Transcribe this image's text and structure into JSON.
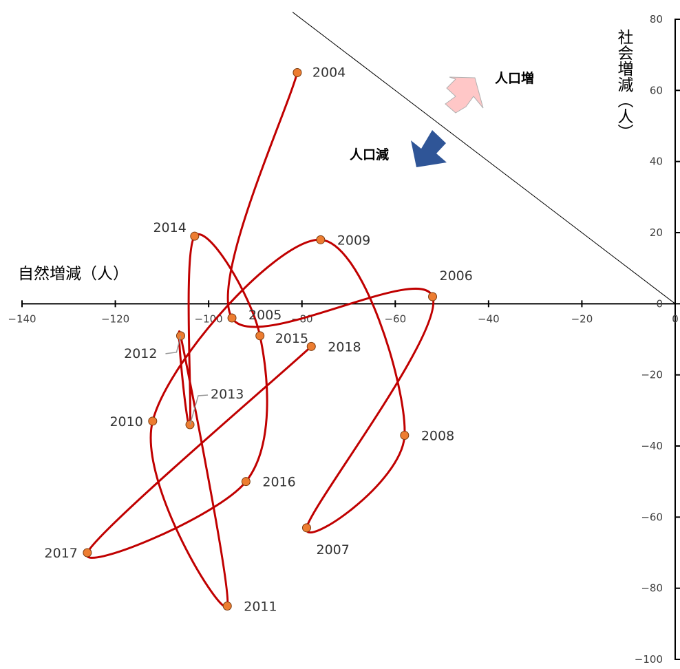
{
  "chart_data": {
    "type": "scatter",
    "title": "",
    "xlabel": "自然増減（人）",
    "ylabel": "社会増減（人）",
    "xlim": [
      -140,
      0
    ],
    "ylim": [
      -100,
      80
    ],
    "xticks": [
      -140,
      -120,
      -100,
      -80,
      -60,
      -40,
      -20,
      0
    ],
    "yticks": [
      -100,
      -80,
      -60,
      -40,
      -20,
      0,
      20,
      40,
      60,
      80
    ],
    "x_tick_labels": [
      "−140",
      "−120",
      "−100",
      "−80",
      "−60",
      "−40",
      "−20",
      "0"
    ],
    "y_tick_labels": [
      "−100",
      "−80",
      "−60",
      "−40",
      "−20",
      "0",
      "20",
      "40",
      "60",
      "80"
    ],
    "grid": false,
    "series": [
      {
        "color": "#c00000",
        "marker_color": "#ed7d31",
        "connected": "smooth",
        "points": [
          {
            "label": "2004",
            "x": -81,
            "y": 65
          },
          {
            "label": "2005",
            "x": -95,
            "y": -4
          },
          {
            "label": "2006",
            "x": -52,
            "y": 2
          },
          {
            "label": "2007",
            "x": -79,
            "y": -63
          },
          {
            "label": "2008",
            "x": -58,
            "y": -37
          },
          {
            "label": "2009",
            "x": -76,
            "y": 18
          },
          {
            "label": "2010",
            "x": -112,
            "y": -33
          },
          {
            "label": "2011",
            "x": -96,
            "y": -85
          },
          {
            "label": "2012",
            "x": -106,
            "y": -9
          },
          {
            "label": "2013",
            "x": -104,
            "y": -34
          },
          {
            "label": "2014",
            "x": -103,
            "y": 19
          },
          {
            "label": "2015",
            "x": -89,
            "y": -9
          },
          {
            "label": "2016",
            "x": -92,
            "y": -50
          },
          {
            "label": "2017",
            "x": -126,
            "y": -70
          },
          {
            "label": "2018",
            "x": -78,
            "y": -12
          }
        ]
      }
    ],
    "reference_line": {
      "description": "人口増減ゼロ (x + y = 0)",
      "x": [
        -82,
        0
      ],
      "y": [
        82,
        0
      ]
    },
    "annotations": [
      {
        "text": "人口増",
        "arrow_color": "#ffc7c7",
        "direction": "up-right"
      },
      {
        "text": "人口減",
        "arrow_color": "#2f5597",
        "direction": "down-left"
      }
    ]
  }
}
